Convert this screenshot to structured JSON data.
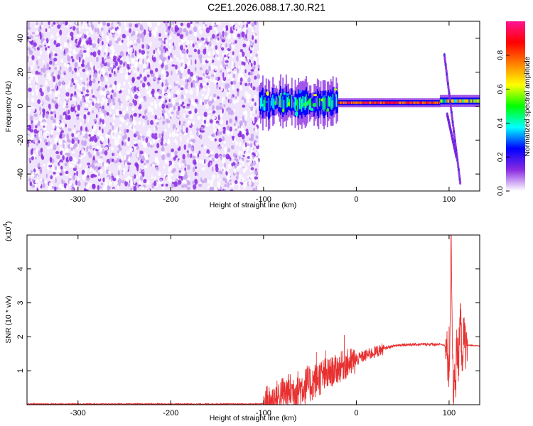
{
  "figure": {
    "title": "C2E1.2026.088.17.30.R21"
  },
  "chart_data": [
    {
      "type": "heatmap",
      "xlabel": "Height of straight line (km)",
      "ylabel": "Frequency (Hz)",
      "xlim": [
        -355,
        133
      ],
      "ylim": [
        -50,
        50
      ],
      "xticks": [
        -300,
        -200,
        -100,
        0,
        100
      ],
      "yticks": [
        -40,
        -20,
        0,
        20,
        40
      ],
      "colorbar": {
        "label": "Normalized spectral amplitude",
        "range": [
          0,
          1
        ],
        "ticks": [
          0.0,
          0.2,
          0.4,
          0.6,
          0.8
        ],
        "tick_labels": [
          "0.0",
          "0.2",
          "0.4",
          "0.6",
          "0.8"
        ],
        "colormap": [
          "#ffffff",
          "#8a2be2",
          "#0000ff",
          "#00ffff",
          "#00ff00",
          "#ffff00",
          "#ff8000",
          "#ff0000",
          "#ff1493"
        ]
      },
      "regions": [
        {
          "name": "noise",
          "x_range": [
            -355,
            -105
          ],
          "f_range": [
            -50,
            50
          ],
          "amplitude_range": [
            0.0,
            0.15
          ]
        },
        {
          "name": "turbulent-carrier",
          "x_range": [
            -105,
            -20
          ],
          "f_center": 2,
          "f_halfwidth": 6,
          "amplitude_range": [
            0.1,
            0.5
          ]
        },
        {
          "name": "steady-carrier",
          "x_range": [
            -20,
            90
          ],
          "f_center": 2,
          "f_halfwidth": 1.5,
          "amplitude_range": [
            0.7,
            1.0
          ]
        },
        {
          "name": "disturbance",
          "x_range": [
            90,
            133
          ],
          "f_center": 3,
          "f_halfwidth": 2,
          "amplitude_range": [
            0.3,
            0.8
          ]
        }
      ],
      "features": [
        {
          "name": "doppler-streak",
          "x": [
            95,
            112
          ],
          "f": [
            30,
            -45
          ]
        },
        {
          "name": "mirror-streak",
          "x": [
            98,
            108
          ],
          "f": [
            -5,
            -30
          ]
        }
      ]
    },
    {
      "type": "line",
      "xlabel": "Height of straight line (km)",
      "ylabel": "SNR (10 * v/v)",
      "y_multiplier_label": "(x10",
      "y_multiplier_exp": "4",
      "y_multiplier_close": ")",
      "xlim": [
        -355,
        133
      ],
      "ylim": [
        0,
        5
      ],
      "xticks": [
        -300,
        -200,
        -100,
        0,
        100
      ],
      "yticks": [
        1,
        2,
        3,
        4
      ],
      "series": [
        {
          "color": "#e83030",
          "x": [
            -355,
            -110,
            -100,
            -95,
            -90,
            -85,
            -80,
            -75,
            -70,
            -65,
            -60,
            -55,
            -50,
            -45,
            -40,
            -35,
            -30,
            -25,
            -20,
            -15,
            -10,
            -5,
            0,
            5,
            10,
            15,
            20,
            25,
            30,
            35,
            40,
            45,
            50,
            60,
            70,
            80,
            90,
            95,
            98,
            100,
            101,
            102,
            103,
            104,
            105,
            106,
            107,
            108,
            110,
            112,
            114,
            116,
            118,
            120,
            125,
            133
          ],
          "y": [
            0.02,
            0.02,
            0.03,
            0.06,
            0.1,
            0.2,
            0.3,
            0.35,
            0.4,
            0.45,
            0.5,
            0.55,
            0.6,
            0.7,
            0.8,
            0.85,
            0.9,
            1.0,
            1.05,
            1.15,
            1.2,
            1.25,
            1.3,
            1.4,
            1.45,
            1.5,
            1.55,
            1.6,
            1.65,
            1.7,
            1.73,
            1.75,
            1.77,
            1.77,
            1.78,
            1.78,
            1.78,
            1.75,
            1.5,
            0.8,
            2.4,
            4.9,
            3.5,
            1.1,
            0.2,
            1.3,
            0.5,
            1.6,
            1.2,
            2.6,
            1.5,
            2.0,
            1.75,
            1.75,
            1.75,
            1.73
          ],
          "noise_envelope": [
            {
              "x_range": [
                -100,
                -30
              ],
              "amplitude": 0.55
            },
            {
              "x_range": [
                -30,
                0
              ],
              "amplitude": 0.45
            },
            {
              "x_range": [
                0,
                30
              ],
              "amplitude": 0.18
            },
            {
              "x_range": [
                30,
                90
              ],
              "amplitude": 0.04
            }
          ],
          "spikes": [
            {
              "x": -13,
              "y": 2.05
            },
            {
              "x": -33,
              "y": 1.6
            },
            {
              "x": -43,
              "y": 1.55
            },
            {
              "x": -53,
              "y": 1.15
            },
            {
              "x": 98,
              "y": 1.8
            },
            {
              "x": 100,
              "y": 2.3
            },
            {
              "x": 102,
              "y": 4.9
            }
          ]
        }
      ]
    }
  ]
}
